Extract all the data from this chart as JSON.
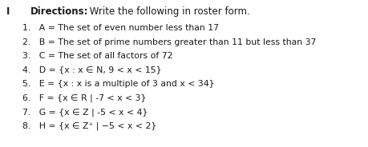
{
  "header_I": "I",
  "header_bold": "Directions:",
  "header_normal": " Write the following in roster form.",
  "items": [
    "1.   A = The set of even number less than 17",
    "2.   B = The set of prime numbers greater than 11 but less than 37",
    "3.   C = The set of all factors of 72",
    "4.   D = {x : x ∈ N, 9 < x < 15}",
    "5.   E = {x : x is a multiple of 3 and x < 34}",
    "6.   F = {x ∈ R | -7 < x < 3}",
    "7.   G = {x ∈ Z | -5 < x < 4}",
    "8.   H = {x ∈ Z⁺ | −5 < x < 2}"
  ],
  "bg_color": "#ffffff",
  "text_color": "#1a1a1a",
  "font_size": 7.8,
  "header_font_size": 8.5
}
